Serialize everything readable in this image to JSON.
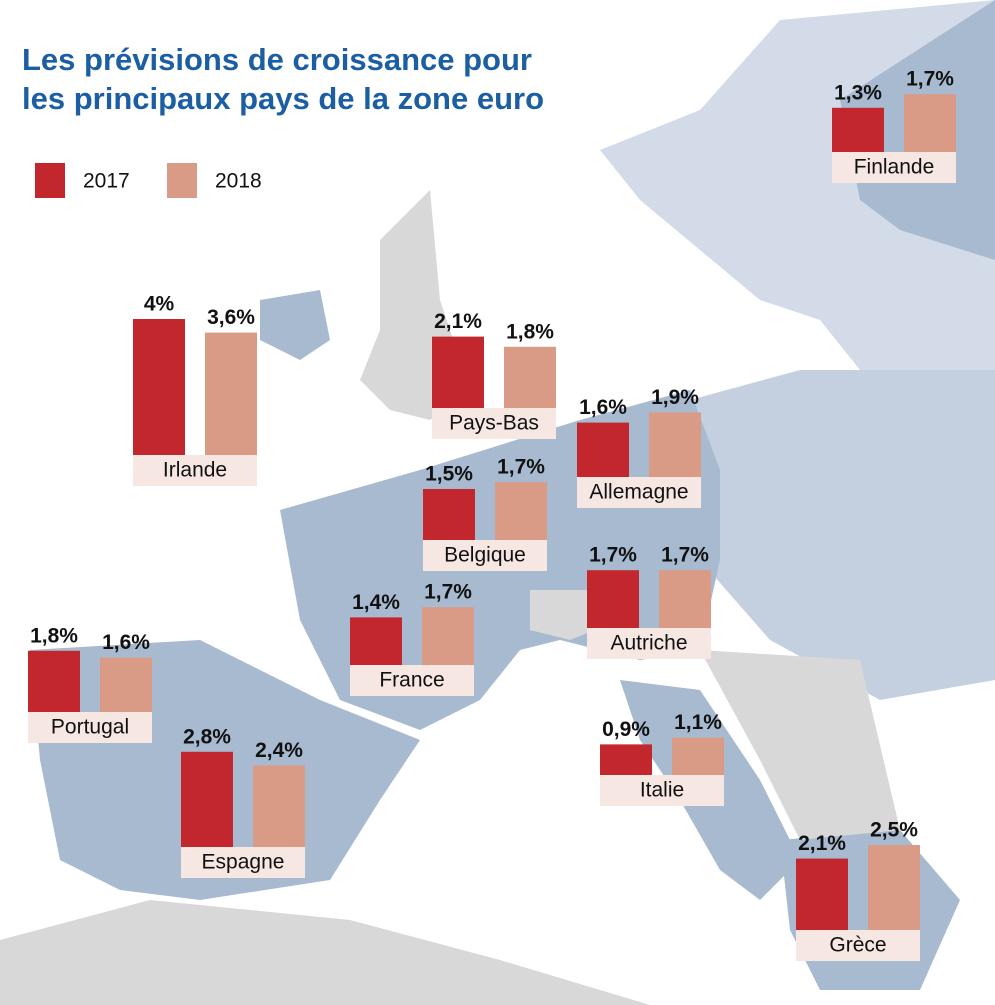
{
  "chart_data": {
    "type": "bar",
    "title_lines": [
      "Les prévisions de croissance pour",
      "les principaux pays de la zone euro"
    ],
    "categories": [
      "Finlande",
      "Irlande",
      "Pays-Bas",
      "Allemagne",
      "Belgique",
      "Autriche",
      "France",
      "Portugal",
      "Espagne",
      "Italie",
      "Grèce"
    ],
    "series": [
      {
        "name": "2017",
        "color": "#c1272d",
        "values": [
          1.3,
          4,
          2.1,
          1.6,
          1.5,
          1.7,
          1.4,
          1.8,
          2.8,
          0.9,
          2.1
        ],
        "value_labels": [
          "1,3%",
          "4%",
          "2,1%",
          "1,6%",
          "1,5%",
          "1,7%",
          "1,4%",
          "1,8%",
          "2,8%",
          "0,9%",
          "2,1%"
        ]
      },
      {
        "name": "2018",
        "color": "#d99b86",
        "values": [
          1.7,
          3.6,
          1.8,
          1.9,
          1.7,
          1.7,
          1.7,
          1.6,
          2.4,
          1.1,
          2.5
        ],
        "value_labels": [
          "1,7%",
          "3,6%",
          "1,8%",
          "1,9%",
          "1,7%",
          "1,7%",
          "1,7%",
          "1,6%",
          "2,4%",
          "1,1%",
          "2,5%"
        ]
      }
    ]
  }
}
